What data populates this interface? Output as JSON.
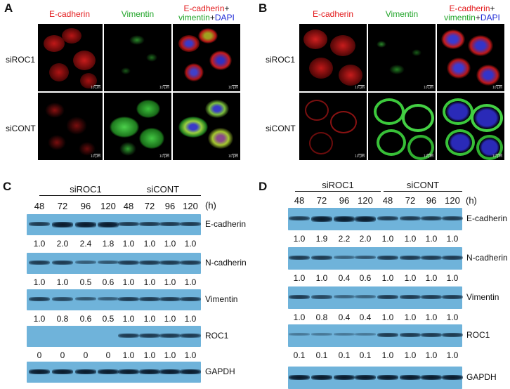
{
  "panels": {
    "A": "A",
    "B": "B",
    "C": "C",
    "D": "D"
  },
  "micro": {
    "col_ecad": "E-cadherin",
    "col_vim": "Vimentin",
    "merge_part1": "E-cadherin",
    "merge_plus1": "+",
    "merge_part2": "vimentin",
    "merge_plus2": "+",
    "merge_part3": "DAPI",
    "row_siroc1": "siROC1",
    "row_sicont": "siCONT",
    "scale": "10 μm"
  },
  "blots": {
    "hours_unit": "(h)",
    "group_roc1": "siROC1",
    "group_cont": "siCONT",
    "timepoints": [
      "48",
      "72",
      "96",
      "120",
      "48",
      "72",
      "96",
      "120"
    ],
    "C": {
      "proteins": [
        "E-cadherin",
        "N-cadherin",
        "Vimentin",
        "ROC1",
        "GAPDH"
      ],
      "quant": [
        [
          "1.0",
          "2.0",
          "2.4",
          "1.8",
          "1.0",
          "1.0",
          "1.0",
          "1.0"
        ],
        [
          "1.0",
          "1.0",
          "0.5",
          "0.6",
          "1.0",
          "1.0",
          "1.0",
          "1.0"
        ],
        [
          "1.0",
          "0.8",
          "0.6",
          "0.5",
          "1.0",
          "1.0",
          "1.0",
          "1.0"
        ],
        [
          "0",
          "0",
          "0",
          "0",
          "1.0",
          "1.0",
          "1.0",
          "1.0"
        ]
      ]
    },
    "D": {
      "proteins": [
        "E-cadherin",
        "N-cadherin",
        "Vimentin",
        "ROC1",
        "GAPDH"
      ],
      "quant": [
        [
          "1.0",
          "1.9",
          "2.2",
          "2.0",
          "1.0",
          "1.0",
          "1.0",
          "1.0"
        ],
        [
          "1.0",
          "1.0",
          "0.4",
          "0.6",
          "1.0",
          "1.0",
          "1.0",
          "1.0"
        ],
        [
          "1.0",
          "0.8",
          "0.4",
          "0.4",
          "1.0",
          "1.0",
          "1.0",
          "1.0"
        ],
        [
          "0.1",
          "0.1",
          "0.1",
          "0.1",
          "1.0",
          "1.0",
          "1.0",
          "1.0"
        ]
      ]
    }
  },
  "colors": {
    "ecad_red": "#e31a1c",
    "vim_green": "#22a52a",
    "dapi_blue": "#1f2bd6",
    "blot_bg": "#6fb3da"
  }
}
